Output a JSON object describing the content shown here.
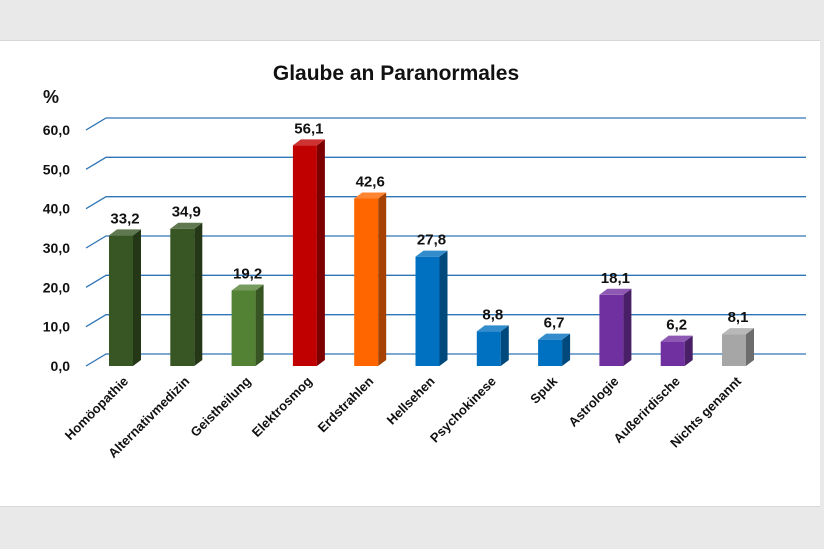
{
  "chart_data": {
    "type": "bar",
    "title": "Glaube an Paranormales",
    "ylabel": "%",
    "xlabel": "",
    "ylim": [
      0,
      60
    ],
    "yticks": [
      "0,0",
      "10,0",
      "20,0",
      "30,0",
      "40,0",
      "50,0",
      "60,0"
    ],
    "grid": true,
    "categories": [
      "Homöopathie",
      "Alternativmedizin",
      "Geistheilung",
      "Elektrosmog",
      "Erdstrahlen",
      "Hellsehen",
      "Psychokinese",
      "Spuk",
      "Astrologie",
      "Außerirdische",
      "Nichts genannt"
    ],
    "values": [
      33.2,
      34.9,
      19.2,
      56.1,
      42.6,
      27.8,
      8.8,
      6.7,
      18.1,
      6.2,
      8.1
    ],
    "value_labels": [
      "33,2",
      "34,9",
      "19,2",
      "56,1",
      "42,6",
      "27,8",
      "8,8",
      "6,7",
      "18,1",
      "6,2",
      "8,1"
    ],
    "bar_colors": [
      "#375623",
      "#375623",
      "#548235",
      "#c00000",
      "#ff6600",
      "#0070c0",
      "#0070c0",
      "#0070c0",
      "#7030a0",
      "#7030a0",
      "#a6a6a6"
    ],
    "gridline_color": "#2e75b6"
  }
}
